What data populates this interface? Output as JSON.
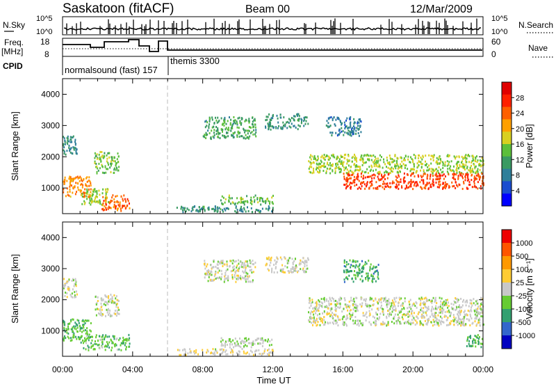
{
  "header": {
    "station": "Saskatoon (fitACF)",
    "beam": "Beam 00",
    "date": "12/Mar/2009"
  },
  "strip": {
    "nsky_label": "N.Sky",
    "nsky_ticks": [
      "10^5",
      "10^0"
    ],
    "nsearch_label": "N.Search",
    "freq_label_1": "Freq.",
    "freq_label_2": "[MHz]",
    "freq_ticks": [
      "18",
      "8"
    ],
    "nave_label": "Nave",
    "nave_ticks": [
      "60",
      "0"
    ],
    "nsearch_ticks": [
      "10^5",
      "10^0"
    ]
  },
  "cpid": {
    "label": "CPID",
    "programs": [
      "normalsound (fast) 157",
      "themis 3300"
    ]
  },
  "axes": {
    "ylabel": "Slant Range [km]",
    "xlabel": "Time UT",
    "yticks": [
      "4000",
      "3000",
      "2000",
      "1000"
    ],
    "xticks": [
      "00:00",
      "04:00",
      "08:00",
      "12:00",
      "16:00",
      "20:00",
      "00:00"
    ]
  },
  "colorbars": {
    "power": {
      "title": "Power [dB]",
      "ticks": [
        "28",
        "24",
        "20",
        "16",
        "12",
        "8",
        "4"
      ],
      "colors": [
        "#0000ff",
        "#1a4dd0",
        "#2f7f9a",
        "#3a9a62",
        "#5cbf3a",
        "#d8d020",
        "#ffa000",
        "#ff6000",
        "#ff2000",
        "#e00000"
      ]
    },
    "velocity": {
      "title": "Velocity [m s⁻¹]",
      "ticks": [
        "1000",
        "500",
        "100",
        "25",
        "-25",
        "-100",
        "-500",
        "-1000"
      ],
      "colors": [
        "#0000c0",
        "#3366cc",
        "#33a070",
        "#66cc33",
        "#c8c8c8",
        "#ffcc33",
        "#ff9900",
        "#ff5500",
        "#ee0000"
      ]
    }
  },
  "chart_data": [
    {
      "type": "heatmap",
      "title": "Power",
      "xlabel": "Time UT",
      "ylabel": "Slant Range [km]",
      "xlim": [
        0,
        24
      ],
      "ylim": [
        180,
        4500
      ],
      "colorbar_label": "Power [dB]",
      "colorbar_range": [
        0,
        32
      ],
      "echo_regions": [
        {
          "t0": 0.0,
          "t1": 0.8,
          "r0": 2100,
          "r1": 2700,
          "v": 10
        },
        {
          "t0": 0.0,
          "t1": 1.6,
          "r0": 700,
          "r1": 1400,
          "v": 22
        },
        {
          "t0": 1.0,
          "t1": 2.6,
          "r0": 500,
          "r1": 1000,
          "v": 16
        },
        {
          "t0": 2.2,
          "t1": 3.8,
          "r0": 300,
          "r1": 800,
          "v": 24
        },
        {
          "t0": 1.8,
          "t1": 3.2,
          "r0": 1500,
          "r1": 2200,
          "v": 14
        },
        {
          "t0": 6.5,
          "t1": 12.0,
          "r0": 250,
          "r1": 450,
          "v": 10
        },
        {
          "t0": 8.0,
          "t1": 11.0,
          "r0": 2600,
          "r1": 3300,
          "v": 12
        },
        {
          "t0": 9.0,
          "t1": 12.0,
          "r0": 500,
          "r1": 800,
          "v": 14
        },
        {
          "t0": 11.5,
          "t1": 14.0,
          "r0": 2900,
          "r1": 3400,
          "v": 10
        },
        {
          "t0": 14.0,
          "t1": 24.0,
          "r0": 1500,
          "r1": 2100,
          "v": 16
        },
        {
          "t0": 16.0,
          "t1": 24.0,
          "r0": 1000,
          "r1": 1500,
          "v": 26
        },
        {
          "t0": 15.0,
          "t1": 17.0,
          "r0": 2700,
          "r1": 3300,
          "v": 8
        }
      ]
    },
    {
      "type": "heatmap",
      "title": "Velocity",
      "xlabel": "Time UT",
      "ylabel": "Slant Range [km]",
      "xlim": [
        0,
        24
      ],
      "ylim": [
        180,
        4500
      ],
      "colorbar_label": "Velocity [m s⁻¹]",
      "colorbar_range": [
        -1000,
        1000
      ],
      "echo_regions": [
        {
          "t0": 0.0,
          "t1": 0.8,
          "r0": 2100,
          "r1": 2700,
          "v": 0
        },
        {
          "t0": 0.0,
          "t1": 1.6,
          "r0": 700,
          "r1": 1400,
          "v": -300
        },
        {
          "t0": 1.0,
          "t1": 3.8,
          "r0": 400,
          "r1": 900,
          "v": -250
        },
        {
          "t0": 1.8,
          "t1": 3.2,
          "r0": 1500,
          "r1": 2200,
          "v": 0
        },
        {
          "t0": 6.5,
          "t1": 12.0,
          "r0": 250,
          "r1": 450,
          "v": 60
        },
        {
          "t0": 8.0,
          "t1": 11.0,
          "r0": 2600,
          "r1": 3300,
          "v": 0
        },
        {
          "t0": 9.0,
          "t1": 12.0,
          "r0": 500,
          "r1": 800,
          "v": -80
        },
        {
          "t0": 11.5,
          "t1": 14.0,
          "r0": 2900,
          "r1": 3400,
          "v": 0
        },
        {
          "t0": 14.0,
          "t1": 24.0,
          "r0": 1200,
          "r1": 2100,
          "v": 0
        },
        {
          "t0": 16.0,
          "t1": 18.0,
          "r0": 2600,
          "r1": 3300,
          "v": -400
        },
        {
          "t0": 23.0,
          "t1": 24.0,
          "r0": 500,
          "r1": 900,
          "v": -300
        }
      ]
    }
  ]
}
